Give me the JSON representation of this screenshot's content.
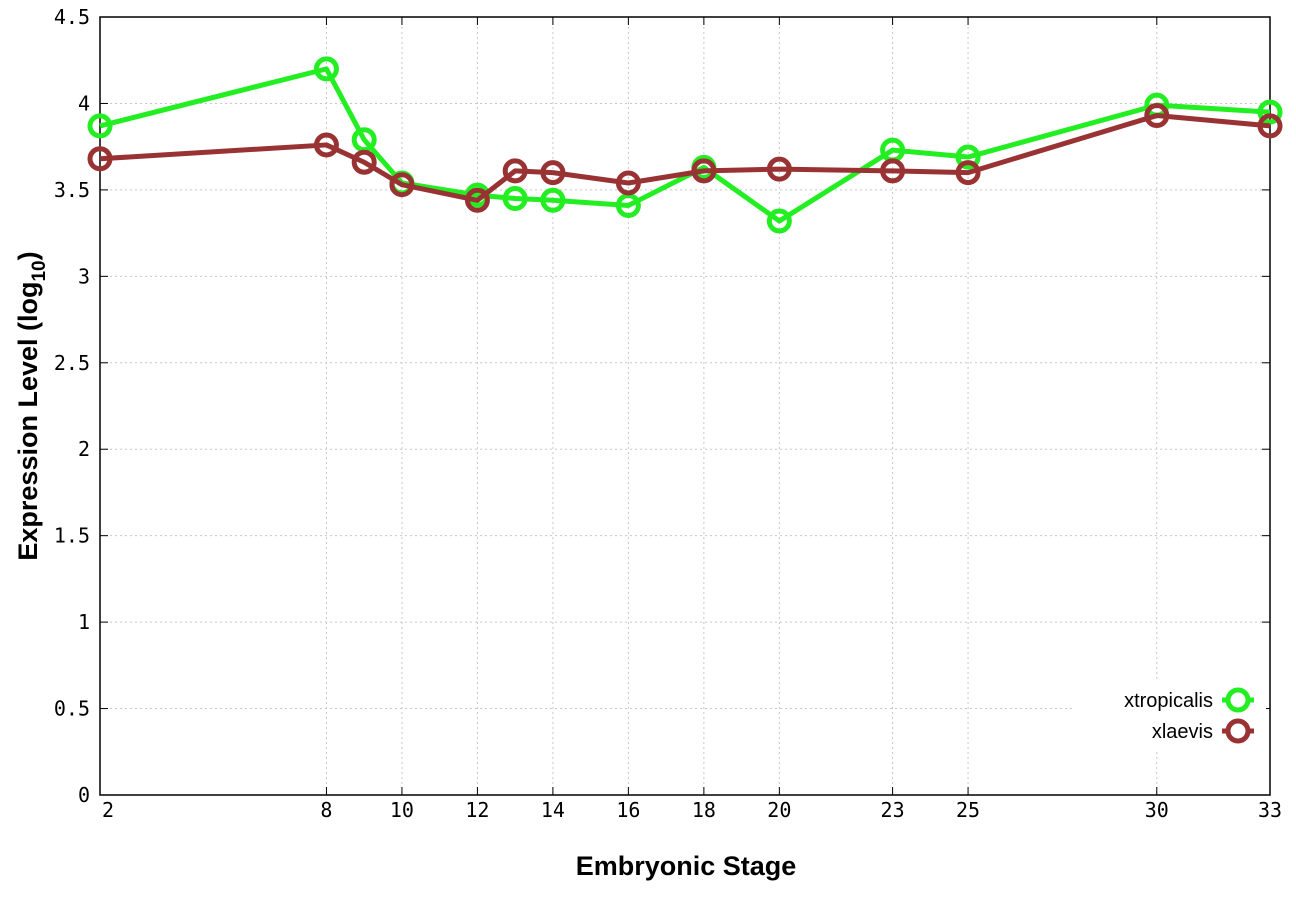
{
  "chart_data": {
    "type": "line",
    "xlabel": "Embryonic Stage",
    "ylabel_main": "Expression Level (log",
    "ylabel_sub": "10",
    "ylabel_close": ")",
    "ylabel": "Expression Level (log10)",
    "x_ticks": [
      2,
      8,
      10,
      12,
      14,
      16,
      18,
      20,
      23,
      25,
      30,
      33
    ],
    "y_ticks": [
      "0",
      "0.5",
      "1",
      "1.5",
      "2",
      "2.5",
      "3",
      "3.5",
      "4",
      "4.5"
    ],
    "ylim": [
      0,
      4.5
    ],
    "x_positions": [
      2,
      8,
      9,
      10,
      12,
      13,
      14,
      16,
      18,
      20,
      23,
      25,
      30,
      33
    ],
    "x_tick_map": [
      [
        2,
        0
      ],
      [
        8,
        8
      ],
      [
        10,
        10
      ],
      [
        12,
        12
      ],
      [
        14,
        14
      ],
      [
        16,
        16
      ],
      [
        18,
        18
      ],
      [
        20,
        20
      ],
      [
        23,
        23
      ],
      [
        25,
        25
      ],
      [
        30,
        30
      ],
      [
        33,
        33
      ]
    ],
    "grid": true,
    "legend_position": "bottom-right",
    "series": [
      {
        "name": "xtropicalis",
        "color": "#22ee22",
        "points": [
          [
            2,
            3.87
          ],
          [
            8,
            4.2
          ],
          [
            9,
            3.79
          ],
          [
            10,
            3.54
          ],
          [
            12,
            3.47
          ],
          [
            13,
            3.45
          ],
          [
            14,
            3.44
          ],
          [
            16,
            3.41
          ],
          [
            18,
            3.63
          ],
          [
            20,
            3.32
          ],
          [
            23,
            3.73
          ],
          [
            25,
            3.69
          ],
          [
            30,
            3.99
          ],
          [
            33,
            3.95
          ]
        ]
      },
      {
        "name": "xlaevis",
        "color": "#993333",
        "points": [
          [
            2,
            3.68
          ],
          [
            8,
            3.76
          ],
          [
            9,
            3.66
          ],
          [
            10,
            3.53
          ],
          [
            12,
            3.44
          ],
          [
            13,
            3.61
          ],
          [
            14,
            3.6
          ],
          [
            16,
            3.54
          ],
          [
            18,
            3.61
          ],
          [
            20,
            3.62
          ],
          [
            23,
            3.61
          ],
          [
            25,
            3.6
          ],
          [
            30,
            3.93
          ],
          [
            33,
            3.87
          ]
        ]
      }
    ]
  }
}
